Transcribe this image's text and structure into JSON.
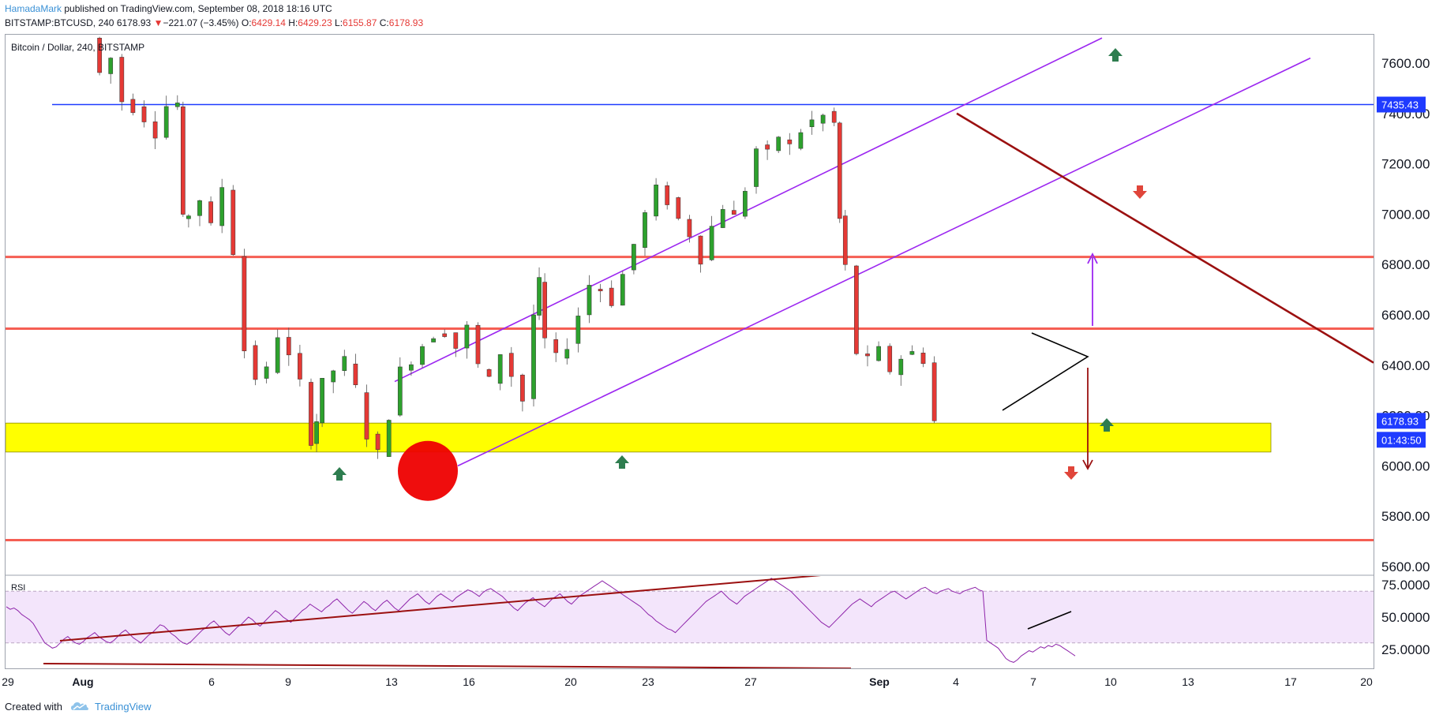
{
  "header": {
    "author": "HamadaMark",
    "published_text": "published on TradingView.com, September 08, 2018 18:16 UTC",
    "symbol": "BITSTAMP:BTCUSD, 240",
    "last_price": "6178.93",
    "change": "−221.07 (−3.45%)",
    "open_label": "O:",
    "open": "6429.14",
    "high_label": "H:",
    "high": "6429.23",
    "low_label": "L:",
    "low": "6155.87",
    "close_label": "C:",
    "close": "6178.93",
    "down_arrow_icon": "triangle-down-icon"
  },
  "footer": {
    "created_with": "Created with",
    "brand": "TradingView",
    "logo_icon": "tradingview-cloud-icon"
  },
  "colors": {
    "up": "#26a69a",
    "candle_up": "#2da12d",
    "candle_down": "#e53935",
    "support_zone": "#ffff00",
    "channel": "#9c27f0",
    "horizontal_blue": "#1f3bff",
    "horizontal_red": "#f44336",
    "trendline": "#9b1010",
    "rsi_line": "#8e24aa",
    "rsi_band": "#f3e5fb"
  },
  "chart_data": [
    {
      "type": "candlestick",
      "title": "Bitcoin / Dollar, 240, BITSTAMP",
      "y_axis": {
        "ticks": [
          "7600.00",
          "7400.00",
          "7200.00",
          "7000.00",
          "6800.00",
          "6600.00",
          "6400.00",
          "6200.00",
          "6000.00",
          "5800.00",
          "5600.00"
        ],
        "ylim": [
          5560,
          7700
        ]
      },
      "x_axis": {
        "ticks": [
          "29",
          "Aug",
          "6",
          "9",
          "13",
          "16",
          "20",
          "23",
          "27",
          "Sep",
          "4",
          "7",
          "10",
          "13",
          "17",
          "20"
        ]
      },
      "price_labels": [
        {
          "name": "horizontal-level",
          "value": "7435.43"
        },
        {
          "name": "last-price",
          "value": "6178.93"
        },
        {
          "name": "bar-countdown",
          "value": "01:43:50"
        }
      ],
      "price_path": [
        [
          1,
          7700
        ],
        [
          2,
          7560
        ],
        [
          3,
          7620
        ],
        [
          4,
          7450
        ],
        [
          5,
          7420
        ],
        [
          6,
          7380
        ],
        [
          7,
          7320
        ],
        [
          8,
          7430
        ],
        [
          8.5,
          7440
        ],
        [
          9,
          6980
        ],
        [
          10,
          7000
        ],
        [
          11,
          7060
        ],
        [
          12,
          6950
        ],
        [
          13,
          7110
        ],
        [
          14,
          6850
        ],
        [
          15,
          6460
        ],
        [
          16,
          6350
        ],
        [
          17,
          6380
        ],
        [
          18,
          6520
        ],
        [
          19,
          6430
        ],
        [
          20,
          6330
        ],
        [
          20.5,
          6100
        ],
        [
          21,
          6180
        ],
        [
          22,
          6330
        ],
        [
          23,
          6380
        ],
        [
          24,
          6420
        ],
        [
          25,
          6310
        ],
        [
          26,
          6120
        ],
        [
          27,
          6050
        ],
        [
          28,
          6200
        ],
        [
          29,
          6380
        ],
        [
          30,
          6420
        ],
        [
          31,
          6480
        ],
        [
          32,
          6520
        ],
        [
          33,
          6530
        ],
        [
          34,
          6470
        ],
        [
          35,
          6550
        ],
        [
          36,
          6400
        ],
        [
          37,
          6340
        ],
        [
          38,
          6450
        ],
        [
          39,
          6360
        ],
        [
          40,
          6260
        ],
        [
          40.5,
          6600
        ],
        [
          41,
          6730
        ],
        [
          42,
          6500
        ],
        [
          43,
          6430
        ],
        [
          44,
          6480
        ],
        [
          45,
          6600
        ],
        [
          46,
          6720
        ],
        [
          47,
          6700
        ],
        [
          48,
          6650
        ],
        [
          49,
          6760
        ],
        [
          50,
          6880
        ],
        [
          51,
          7000
        ],
        [
          52,
          7100
        ],
        [
          53,
          7050
        ],
        [
          54,
          6980
        ],
        [
          55,
          6920
        ],
        [
          56,
          6820
        ],
        [
          57,
          6950
        ],
        [
          58,
          7030
        ],
        [
          59,
          6990
        ],
        [
          60,
          7100
        ],
        [
          61,
          7260
        ],
        [
          62,
          7240
        ],
        [
          63,
          7310
        ],
        [
          64,
          7270
        ],
        [
          65,
          7330
        ],
        [
          66,
          7370
        ],
        [
          67,
          7390
        ],
        [
          67.5,
          7360
        ],
        [
          68,
          6980
        ],
        [
          69,
          6790
        ],
        [
          70,
          6450
        ],
        [
          71,
          6420
        ],
        [
          72,
          6460
        ],
        [
          73,
          6380
        ],
        [
          74,
          6430
        ],
        [
          75,
          6450
        ],
        [
          76,
          6420
        ],
        [
          77,
          6178.93
        ]
      ],
      "horizontal_levels": [
        {
          "name": "blue-resistance",
          "value": 7435.43,
          "color": "#1f3bff"
        },
        {
          "name": "red-resistance-upper",
          "value": 6830
        },
        {
          "name": "red-resistance-lower",
          "value": 6545
        },
        {
          "name": "red-support",
          "value": 5705
        }
      ],
      "support_zone": {
        "from": 6055,
        "to": 6170
      }
    },
    {
      "type": "line",
      "title": "RSI",
      "y_axis": {
        "ticks": [
          "75.0000",
          "50.0000",
          "25.0000"
        ],
        "ylim": [
          10,
          85
        ],
        "band": [
          30,
          70
        ]
      },
      "values": [
        58,
        56,
        57,
        55,
        52,
        50,
        48,
        45,
        40,
        35,
        30,
        28,
        26,
        27,
        30,
        33,
        35,
        32,
        30,
        29,
        31,
        34,
        36,
        38,
        35,
        33,
        31,
        30,
        32,
        35,
        38,
        40,
        37,
        34,
        32,
        30,
        33,
        36,
        38,
        41,
        44,
        43,
        40,
        37,
        35,
        32,
        30,
        29,
        31,
        34,
        37,
        40,
        42,
        45,
        47,
        44,
        41,
        38,
        36,
        39,
        42,
        44,
        47,
        50,
        48,
        45,
        43,
        46,
        49,
        52,
        55,
        53,
        50,
        48,
        46,
        49,
        52,
        55,
        57,
        60,
        58,
        56,
        54,
        57,
        59,
        62,
        64,
        61,
        58,
        55,
        53,
        56,
        59,
        62,
        60,
        57,
        55,
        58,
        61,
        63,
        60,
        57,
        55,
        58,
        61,
        64,
        66,
        68,
        65,
        62,
        60,
        63,
        66,
        68,
        66,
        64,
        62,
        65,
        67,
        69,
        71,
        70,
        68,
        66,
        69,
        71,
        72,
        70,
        68,
        66,
        63,
        60,
        57,
        55,
        58,
        61,
        63,
        65,
        62,
        60,
        58,
        61,
        64,
        66,
        68,
        65,
        62,
        60,
        63,
        66,
        68,
        70,
        72,
        74,
        76,
        78,
        76,
        74,
        72,
        70,
        68,
        66,
        64,
        62,
        60,
        58,
        55,
        52,
        50,
        47,
        45,
        43,
        41,
        40,
        38,
        41,
        44,
        47,
        50,
        53,
        56,
        59,
        62,
        64,
        66,
        68,
        70,
        67,
        64,
        62,
        60,
        63,
        66,
        68,
        70,
        72,
        74,
        76,
        78,
        80,
        78,
        76,
        74,
        72,
        70,
        67,
        64,
        61,
        58,
        55,
        52,
        49,
        46,
        44,
        42,
        45,
        48,
        51,
        54,
        57,
        60,
        62,
        64,
        62,
        60,
        58,
        61,
        63,
        65,
        67,
        69,
        70,
        68,
        66,
        64,
        66,
        68,
        70,
        72,
        73,
        71,
        69,
        68,
        70,
        71,
        72,
        70,
        69,
        68,
        70,
        71,
        72,
        73,
        71,
        70,
        32,
        30,
        28,
        26,
        22,
        18,
        16,
        15,
        17,
        20,
        22,
        24,
        23,
        25,
        27,
        26,
        28,
        27,
        29,
        28,
        26,
        24,
        22,
        20
      ]
    }
  ]
}
